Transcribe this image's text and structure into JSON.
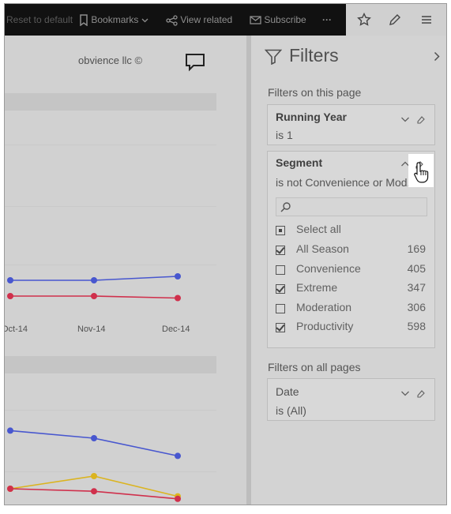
{
  "toolbar": {
    "reset_label": "Reset to default",
    "bookmarks_label": "Bookmarks",
    "view_related_label": "View related",
    "subscribe_label": "Subscribe",
    "more_label": "···"
  },
  "report": {
    "brand": "obvience llc ©",
    "x_ticks": [
      "Oct-14",
      "Nov-14",
      "Dec-14"
    ]
  },
  "chart_data": [
    {
      "type": "line",
      "categories": [
        "Oct-14",
        "Nov-14",
        "Dec-14"
      ],
      "series": [
        {
          "color": "#4857cf",
          "values": [
            0.2,
            0.2,
            0.22
          ]
        },
        {
          "color": "#d0304c",
          "values": [
            0.12,
            0.12,
            0.11
          ]
        }
      ]
    },
    {
      "type": "line",
      "categories": [
        "Oct-14",
        "Nov-14",
        "Dec-14"
      ],
      "series": [
        {
          "color": "#4857cf",
          "values": [
            0.56,
            0.5,
            0.36
          ]
        },
        {
          "color": "#dbb420",
          "values": [
            0.1,
            0.2,
            0.04
          ]
        },
        {
          "color": "#d0304c",
          "values": [
            0.1,
            0.08,
            0.02
          ]
        }
      ]
    }
  ],
  "filters": {
    "title": "Filters",
    "on_this_page_label": "Filters on this page",
    "running_year": {
      "title": "Running Year",
      "condition": "is 1"
    },
    "segment": {
      "title": "Segment",
      "condition": "is not Convenience or Mod...",
      "select_all_label": "Select all",
      "items": [
        {
          "label": "All Season",
          "count": "169",
          "checked": true
        },
        {
          "label": "Convenience",
          "count": "405",
          "checked": false
        },
        {
          "label": "Extreme",
          "count": "347",
          "checked": true
        },
        {
          "label": "Moderation",
          "count": "306",
          "checked": false
        },
        {
          "label": "Productivity",
          "count": "598",
          "checked": true
        }
      ]
    },
    "on_all_pages_label": "Filters on all pages",
    "date": {
      "title": "Date",
      "condition": "is (All)"
    }
  }
}
